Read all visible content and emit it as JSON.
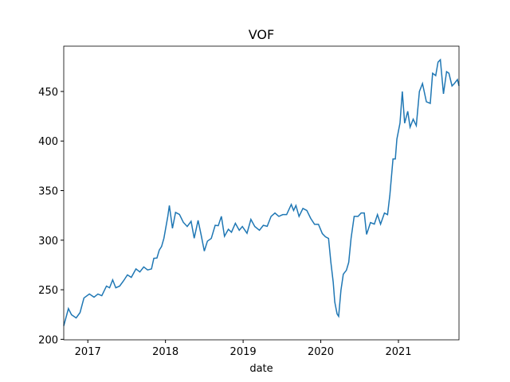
{
  "chart_data": {
    "type": "line",
    "title": "VOF",
    "x_label": "date",
    "color": "#1f77b4",
    "x": [
      2016.69,
      2016.75,
      2016.79,
      2016.85,
      2016.9,
      2016.95,
      2017.02,
      2017.08,
      2017.13,
      2017.18,
      2017.24,
      2017.28,
      2017.32,
      2017.36,
      2017.41,
      2017.46,
      2017.51,
      2017.56,
      2017.62,
      2017.67,
      2017.72,
      2017.77,
      2017.82,
      2017.85,
      2017.89,
      2017.92,
      2017.95,
      2017.98,
      2018.03,
      2018.05,
      2018.09,
      2018.13,
      2018.18,
      2018.23,
      2018.28,
      2018.33,
      2018.37,
      2018.42,
      2018.46,
      2018.5,
      2018.54,
      2018.59,
      2018.64,
      2018.68,
      2018.72,
      2018.76,
      2018.81,
      2018.85,
      2018.9,
      2018.95,
      2018.99,
      2019.05,
      2019.1,
      2019.15,
      2019.21,
      2019.26,
      2019.31,
      2019.36,
      2019.41,
      2019.46,
      2019.51,
      2019.56,
      2019.62,
      2019.65,
      2019.68,
      2019.72,
      2019.77,
      2019.82,
      2019.87,
      2019.92,
      2019.97,
      2020.02,
      2020.06,
      2020.1,
      2020.13,
      2020.16,
      2020.18,
      2020.21,
      2020.23,
      2020.26,
      2020.29,
      2020.33,
      2020.36,
      2020.39,
      2020.43,
      2020.48,
      2020.52,
      2020.56,
      2020.59,
      2020.64,
      2020.69,
      2020.73,
      2020.77,
      2020.82,
      2020.86,
      2020.89,
      2020.93,
      2020.96,
      2020.98,
      2021.02,
      2021.05,
      2021.08,
      2021.12,
      2021.15,
      2021.19,
      2021.23,
      2021.27,
      2021.31,
      2021.36,
      2021.41,
      2021.44,
      2021.48,
      2021.51,
      2021.54,
      2021.58,
      2021.62,
      2021.65,
      2021.69,
      2021.72,
      2021.76,
      2021.78
    ],
    "series": [
      {
        "values": [
          213.6,
          231,
          224.8,
          221.6,
          227,
          241.7,
          245.7,
          242.5,
          245.7,
          244,
          253.7,
          252,
          260,
          252,
          253.7,
          259,
          265,
          262.5,
          271,
          268,
          273,
          270,
          271,
          281.7,
          282,
          290,
          293.7,
          302,
          324,
          335,
          312,
          328,
          326,
          318,
          313.8,
          319,
          302,
          320,
          305,
          289,
          299,
          301.8,
          315,
          314.6,
          324,
          304,
          311,
          308,
          317,
          310,
          313.8,
          307,
          321,
          313.8,
          310,
          315,
          314,
          324,
          327.4,
          324,
          325.8,
          325.8,
          336,
          330,
          335,
          324,
          332,
          330,
          322,
          316,
          316,
          306.6,
          303.4,
          301.8,
          277.7,
          257.7,
          237.7,
          225.6,
          223.2,
          249.7,
          265.7,
          269.7,
          277.7,
          301.8,
          324,
          324,
          327.4,
          327.4,
          305.8,
          317.8,
          316.2,
          325.8,
          316.2,
          327.4,
          325.8,
          345.8,
          381.9,
          381.9,
          401.9,
          418,
          450,
          418,
          430,
          414,
          422,
          415.5,
          450,
          458,
          439.6,
          438,
          468.4,
          466,
          479.6,
          482,
          447.6,
          470,
          468.4,
          455.6,
          458,
          462,
          455.6
        ]
      }
    ],
    "xlim": [
      2016.69,
      2021.78
    ],
    "xticks": [
      2017,
      2018,
      2019,
      2020,
      2021
    ],
    "ylim": [
      199.5,
      495.7
    ],
    "yticks": [
      200,
      250,
      300,
      350,
      400,
      450
    ]
  }
}
